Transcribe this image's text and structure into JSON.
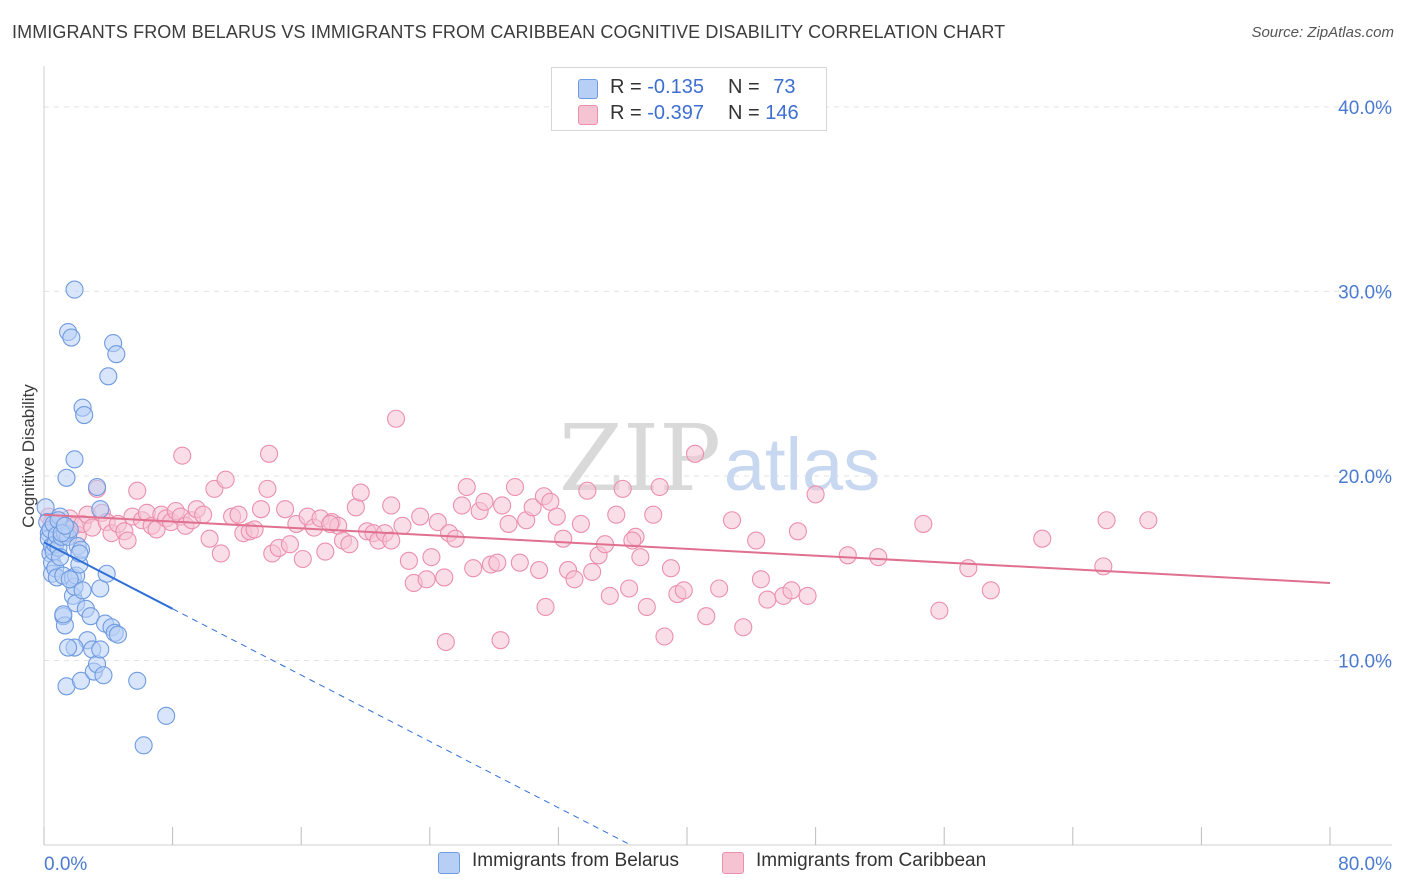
{
  "title": "IMMIGRANTS FROM BELARUS VS IMMIGRANTS FROM CARIBBEAN COGNITIVE DISABILITY CORRELATION CHART",
  "source": "Source: ZipAtlas.com",
  "watermark": {
    "zip": "ZIP",
    "atlas": "atlas"
  },
  "legend": {
    "rows": [
      {
        "r_label": "R =",
        "r_value": "-0.135",
        "n_label": "N =",
        "n_value": "73"
      },
      {
        "r_label": "R =",
        "r_value": "-0.397",
        "n_label": "N =",
        "n_value": "146"
      }
    ]
  },
  "colors": {
    "belarus_fill": "#b8cff5",
    "belarus_stroke": "#6f9be0",
    "belarus_line": "#2f6fd6",
    "caribbean_fill": "#f6c3d3",
    "caribbean_stroke": "#eb8fae",
    "caribbean_line": "#e0708f",
    "tick_text": "#4a7bd0",
    "grid": "#e3e3e3"
  },
  "chart_data": {
    "type": "scatter",
    "title": "IMMIGRANTS FROM BELARUS VS IMMIGRANTS FROM CARIBBEAN COGNITIVE DISABILITY CORRELATION CHART",
    "xlabel": "",
    "ylabel": "Cognitive Disability",
    "xlim": [
      0,
      80
    ],
    "ylim": [
      0,
      42
    ],
    "x_tick_labels": {
      "min": "0.0%",
      "max": "80.0%"
    },
    "y_ticks": [
      10,
      20,
      30,
      40
    ],
    "y_tick_labels": [
      "10.0%",
      "20.0%",
      "30.0%",
      "40.0%"
    ],
    "grid": true,
    "series": [
      {
        "name": "Immigrants from Belarus",
        "r": -0.135,
        "n": 73,
        "trend": {
          "x0": 0,
          "y0": 16.4,
          "x1": 8.0,
          "y1": 12.8,
          "dash_to_x": 36.5,
          "dash_to_y": 0
        },
        "points": [
          [
            0.1,
            18.3
          ],
          [
            0.2,
            17.5
          ],
          [
            0.3,
            16.9
          ],
          [
            0.3,
            16.6
          ],
          [
            0.4,
            17.1
          ],
          [
            0.4,
            15.8
          ],
          [
            0.5,
            16.2
          ],
          [
            0.5,
            15.3
          ],
          [
            0.5,
            14.7
          ],
          [
            0.6,
            15.9
          ],
          [
            0.6,
            17.4
          ],
          [
            0.7,
            16.3
          ],
          [
            0.7,
            15.0
          ],
          [
            0.8,
            16.8
          ],
          [
            0.8,
            14.5
          ],
          [
            0.9,
            16.1
          ],
          [
            1.0,
            17.8
          ],
          [
            1.0,
            15.6
          ],
          [
            1.1,
            16.7
          ],
          [
            1.2,
            14.6
          ],
          [
            1.2,
            12.4
          ],
          [
            1.3,
            11.9
          ],
          [
            1.3,
            16.9
          ],
          [
            1.4,
            19.9
          ],
          [
            1.5,
            16.7
          ],
          [
            1.6,
            17.1
          ],
          [
            1.8,
            14.5
          ],
          [
            1.8,
            13.5
          ],
          [
            1.9,
            14.0
          ],
          [
            2.0,
            13.1
          ],
          [
            2.0,
            14.6
          ],
          [
            2.1,
            16.2
          ],
          [
            2.2,
            15.2
          ],
          [
            2.3,
            16.0
          ],
          [
            2.4,
            13.8
          ],
          [
            2.6,
            12.8
          ],
          [
            2.7,
            11.1
          ],
          [
            2.9,
            12.4
          ],
          [
            3.0,
            10.6
          ],
          [
            1.9,
            10.7
          ],
          [
            1.5,
            10.7
          ],
          [
            1.4,
            8.6
          ],
          [
            2.3,
            8.9
          ],
          [
            3.1,
            9.4
          ],
          [
            3.3,
            9.8
          ],
          [
            3.5,
            13.9
          ],
          [
            3.8,
            12.0
          ],
          [
            3.9,
            14.7
          ],
          [
            4.2,
            11.8
          ],
          [
            4.4,
            11.5
          ],
          [
            4.6,
            11.4
          ],
          [
            3.7,
            9.2
          ],
          [
            3.5,
            10.6
          ],
          [
            5.8,
            8.9
          ],
          [
            7.6,
            7.0
          ],
          [
            6.2,
            5.4
          ],
          [
            1.9,
            30.1
          ],
          [
            1.5,
            27.8
          ],
          [
            1.7,
            27.5
          ],
          [
            4.3,
            27.2
          ],
          [
            4.5,
            26.6
          ],
          [
            4.0,
            25.4
          ],
          [
            2.4,
            23.7
          ],
          [
            2.5,
            23.3
          ],
          [
            1.9,
            20.9
          ],
          [
            3.3,
            19.4
          ],
          [
            3.5,
            18.2
          ],
          [
            0.9,
            17.6
          ],
          [
            1.1,
            16.9
          ],
          [
            1.6,
            14.4
          ],
          [
            1.2,
            12.5
          ],
          [
            2.2,
            15.8
          ],
          [
            1.3,
            17.3
          ]
        ]
      },
      {
        "name": "Immigrants from Caribbean",
        "r": -0.397,
        "n": 146,
        "trend": {
          "x0": 0,
          "y0": 17.9,
          "x1": 80,
          "y1": 14.2
        },
        "points": [
          [
            0.3,
            17.8
          ],
          [
            0.5,
            17.5
          ],
          [
            0.7,
            17.2
          ],
          [
            0.9,
            17.6
          ],
          [
            1.2,
            17.1
          ],
          [
            1.4,
            16.9
          ],
          [
            1.6,
            17.7
          ],
          [
            1.9,
            17.3
          ],
          [
            2.1,
            16.8
          ],
          [
            2.4,
            17.4
          ],
          [
            2.7,
            17.9
          ],
          [
            3.0,
            17.2
          ],
          [
            3.3,
            19.3
          ],
          [
            3.6,
            18.0
          ],
          [
            3.9,
            17.5
          ],
          [
            4.2,
            16.9
          ],
          [
            4.6,
            17.4
          ],
          [
            5.0,
            17.0
          ],
          [
            5.2,
            16.5
          ],
          [
            5.5,
            17.8
          ],
          [
            5.8,
            19.2
          ],
          [
            6.1,
            17.6
          ],
          [
            6.4,
            18.0
          ],
          [
            6.7,
            17.3
          ],
          [
            7.0,
            17.1
          ],
          [
            7.3,
            17.9
          ],
          [
            7.6,
            17.7
          ],
          [
            7.9,
            17.5
          ],
          [
            8.2,
            18.1
          ],
          [
            8.5,
            17.8
          ],
          [
            8.8,
            17.3
          ],
          [
            9.2,
            17.6
          ],
          [
            9.5,
            18.2
          ],
          [
            9.9,
            17.9
          ],
          [
            10.3,
            16.6
          ],
          [
            10.6,
            19.3
          ],
          [
            11.0,
            15.8
          ],
          [
            11.3,
            19.8
          ],
          [
            11.7,
            17.8
          ],
          [
            12.1,
            17.9
          ],
          [
            12.4,
            16.9
          ],
          [
            12.8,
            17.0
          ],
          [
            13.1,
            17.1
          ],
          [
            13.5,
            18.2
          ],
          [
            13.9,
            19.3
          ],
          [
            14.2,
            15.8
          ],
          [
            14.6,
            16.1
          ],
          [
            15.0,
            18.2
          ],
          [
            15.3,
            16.3
          ],
          [
            15.7,
            17.4
          ],
          [
            16.1,
            15.5
          ],
          [
            16.4,
            17.8
          ],
          [
            16.8,
            17.2
          ],
          [
            17.2,
            17.7
          ],
          [
            17.5,
            15.9
          ],
          [
            17.9,
            17.5
          ],
          [
            18.3,
            17.3
          ],
          [
            18.6,
            16.5
          ],
          [
            19.0,
            16.3
          ],
          [
            19.4,
            18.3
          ],
          [
            19.7,
            19.1
          ],
          [
            20.1,
            17.0
          ],
          [
            20.5,
            16.9
          ],
          [
            20.8,
            16.5
          ],
          [
            21.2,
            16.9
          ],
          [
            21.6,
            18.4
          ],
          [
            21.9,
            23.1
          ],
          [
            22.3,
            17.3
          ],
          [
            22.7,
            15.4
          ],
          [
            23.0,
            14.2
          ],
          [
            23.4,
            17.8
          ],
          [
            23.8,
            14.4
          ],
          [
            24.1,
            15.6
          ],
          [
            24.5,
            17.5
          ],
          [
            24.9,
            14.5
          ],
          [
            25.2,
            16.9
          ],
          [
            25.6,
            16.6
          ],
          [
            26.0,
            18.4
          ],
          [
            26.3,
            19.4
          ],
          [
            26.7,
            15.0
          ],
          [
            27.1,
            18.1
          ],
          [
            27.4,
            18.6
          ],
          [
            27.8,
            15.2
          ],
          [
            28.2,
            15.3
          ],
          [
            28.5,
            18.4
          ],
          [
            28.9,
            17.4
          ],
          [
            29.3,
            19.4
          ],
          [
            29.6,
            15.3
          ],
          [
            30.0,
            17.6
          ],
          [
            30.4,
            18.3
          ],
          [
            30.8,
            14.9
          ],
          [
            31.1,
            18.9
          ],
          [
            31.5,
            18.6
          ],
          [
            31.9,
            17.8
          ],
          [
            32.3,
            16.6
          ],
          [
            32.6,
            14.9
          ],
          [
            33.0,
            14.4
          ],
          [
            33.4,
            17.4
          ],
          [
            33.8,
            19.2
          ],
          [
            34.1,
            14.8
          ],
          [
            34.5,
            15.7
          ],
          [
            34.9,
            16.3
          ],
          [
            35.2,
            13.5
          ],
          [
            35.6,
            17.9
          ],
          [
            36.0,
            19.3
          ],
          [
            36.4,
            13.9
          ],
          [
            36.8,
            16.7
          ],
          [
            37.1,
            15.6
          ],
          [
            37.5,
            12.9
          ],
          [
            37.9,
            17.9
          ],
          [
            38.3,
            19.4
          ],
          [
            38.6,
            11.3
          ],
          [
            39.0,
            15.0
          ],
          [
            39.4,
            13.6
          ],
          [
            39.8,
            13.8
          ],
          [
            40.5,
            21.2
          ],
          [
            41.2,
            12.4
          ],
          [
            42.0,
            13.9
          ],
          [
            42.8,
            17.6
          ],
          [
            43.5,
            11.8
          ],
          [
            44.3,
            16.5
          ],
          [
            44.6,
            14.4
          ],
          [
            45.0,
            13.3
          ],
          [
            46.0,
            13.5
          ],
          [
            46.5,
            13.8
          ],
          [
            46.9,
            17.0
          ],
          [
            47.5,
            13.5
          ],
          [
            48.0,
            19.0
          ],
          [
            50.0,
            15.7
          ],
          [
            51.9,
            15.6
          ],
          [
            54.7,
            17.4
          ],
          [
            55.7,
            12.7
          ],
          [
            57.5,
            15.0
          ],
          [
            58.9,
            13.8
          ],
          [
            62.1,
            16.6
          ],
          [
            66.1,
            17.6
          ],
          [
            68.7,
            17.6
          ],
          [
            65.9,
            15.1
          ],
          [
            14.0,
            21.2
          ],
          [
            8.6,
            21.1
          ],
          [
            21.6,
            16.5
          ],
          [
            28.4,
            11.1
          ],
          [
            25.0,
            11.0
          ],
          [
            17.8,
            17.4
          ],
          [
            31.2,
            12.9
          ],
          [
            36.6,
            16.5
          ]
        ]
      }
    ]
  },
  "bottom_legend": {
    "items": [
      {
        "label": "Immigrants from Belarus"
      },
      {
        "label": "Immigrants from Caribbean"
      }
    ]
  }
}
